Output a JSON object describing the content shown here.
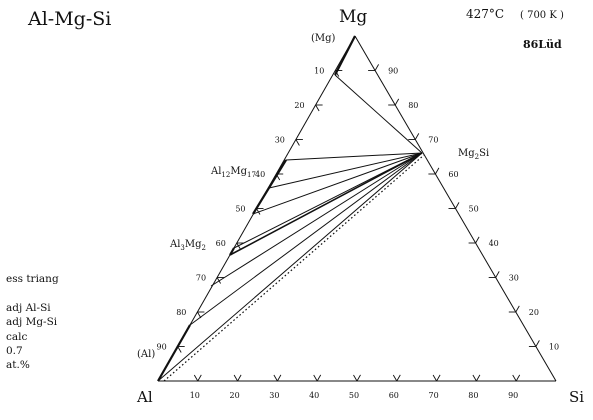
{
  "title": "Al-Mg-Si",
  "temperature": {
    "celsius": "427°C",
    "kelvin": "( 700 K )"
  },
  "reference": "86Lüd",
  "vertices": {
    "top": "Mg",
    "left": "Al",
    "right": "Si"
  },
  "phases": {
    "mg_solid": "(Mg)",
    "al_solid": "(Al)",
    "mg2si": "Mg2Si",
    "al12mg17": "Al12Mg17",
    "al3mg2": "Al3Mg2"
  },
  "left_axis_ticks": [
    "10",
    "20",
    "30",
    "40",
    "50",
    "60",
    "70",
    "80",
    "90"
  ],
  "right_axis_ticks": [
    "90",
    "80",
    "70",
    "60",
    "50",
    "40",
    "30",
    "20",
    "10"
  ],
  "bottom_axis_ticks": [
    "10",
    "20",
    "30",
    "40",
    "50",
    "60",
    "70",
    "80",
    "90"
  ],
  "side_notes": [
    "ess triang",
    "",
    "adj Al-Si",
    "adj Mg-Si",
    "calc",
    "0.7",
    "at.%"
  ]
}
